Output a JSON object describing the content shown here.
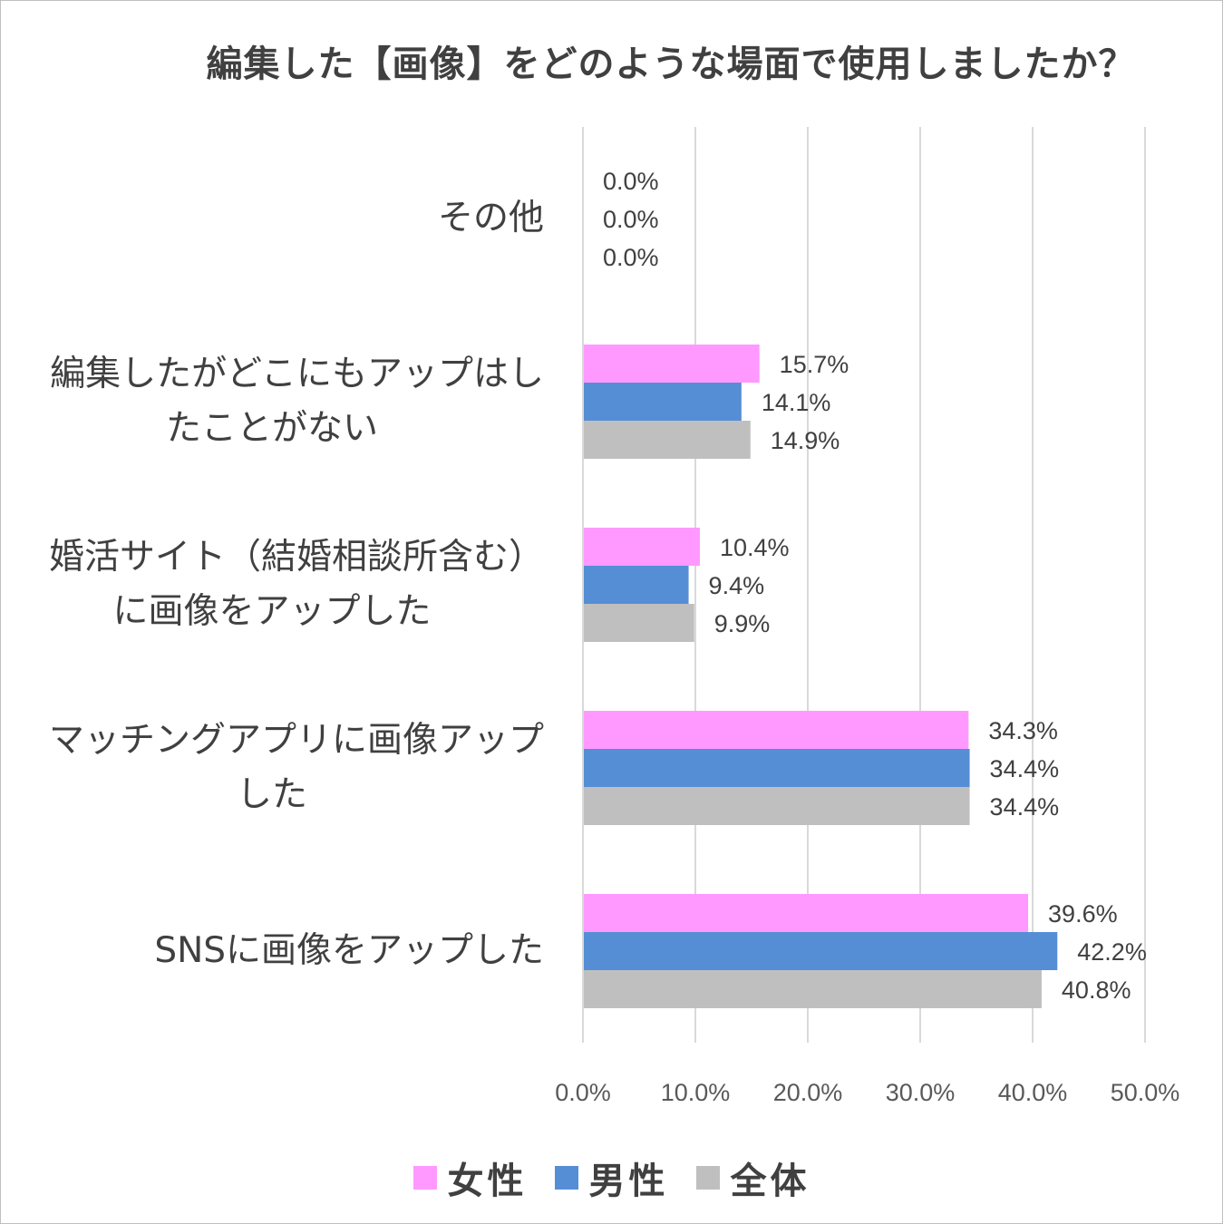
{
  "colors": {
    "female": "#ff99ff",
    "male": "#558ed5",
    "total": "#bfbfbf"
  },
  "chart_data": {
    "type": "bar",
    "orientation": "horizontal",
    "title": "編集した【画像】をどのような場面で使用しましたか？",
    "categories": [
      "その他",
      "編集したがどこにもアップはしたことがない",
      "婚活サイト（結婚相談所含む）に画像をアップした",
      "マッチングアプリに画像アップした",
      "SNSに画像をアップした"
    ],
    "category_lines": [
      [
        "その他"
      ],
      [
        "編集したがどこにもアップはし",
        "たことがない"
      ],
      [
        "婚活サイト（結婚相談所含む）",
        "に画像をアップした"
      ],
      [
        "マッチングアプリに画像アップ",
        "した"
      ],
      [
        "SNSに画像をアップした"
      ]
    ],
    "series": [
      {
        "name": "女性",
        "values": [
          0.0,
          15.7,
          10.4,
          34.3,
          39.6
        ],
        "labels": [
          "0.0%",
          "15.7%",
          "10.4%",
          "34.3%",
          "39.6%"
        ]
      },
      {
        "name": "男性",
        "values": [
          0.0,
          14.1,
          9.4,
          34.4,
          42.2
        ],
        "labels": [
          "0.0%",
          "14.1%",
          "9.4%",
          "34.4%",
          "42.2%"
        ]
      },
      {
        "name": "全体",
        "values": [
          0.0,
          14.9,
          9.9,
          34.4,
          40.8
        ],
        "labels": [
          "0.0%",
          "14.9%",
          "9.9%",
          "34.4%",
          "40.8%"
        ]
      }
    ],
    "xlim": [
      0,
      50
    ],
    "x_ticks": [
      "0.0%",
      "10.0%",
      "20.0%",
      "30.0%",
      "40.0%",
      "50.0%"
    ],
    "grid": true,
    "legend_position": "bottom"
  }
}
